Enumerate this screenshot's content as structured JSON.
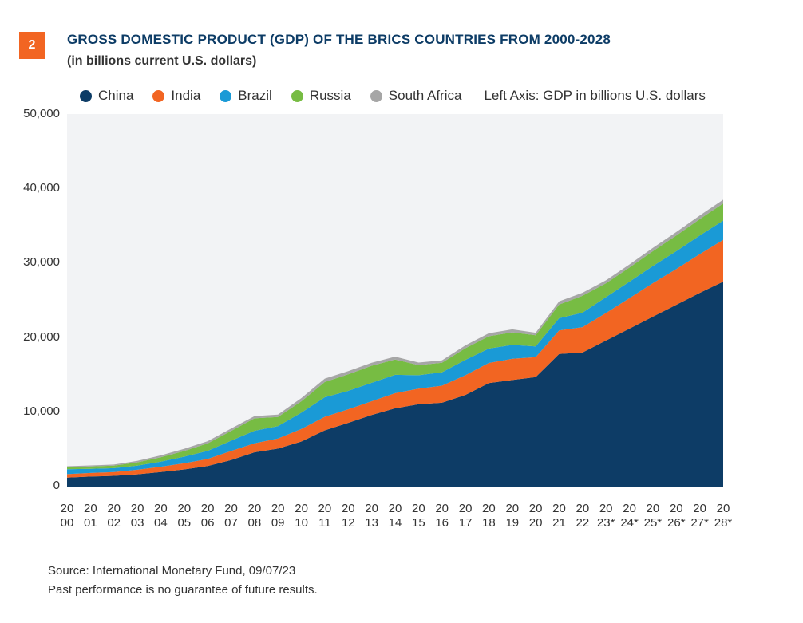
{
  "figure": {
    "number": "2",
    "title": "GROSS DOMESTIC PRODUCT (GDP) OF THE BRICS COUNTRIES FROM 2000-2028",
    "subtitle": "(in billions current U.S. dollars)"
  },
  "legend": {
    "items": [
      {
        "label": "China",
        "color": "#0d3c66"
      },
      {
        "label": "India",
        "color": "#f26522"
      },
      {
        "label": "Brazil",
        "color": "#1a9ad6"
      },
      {
        "label": "Russia",
        "color": "#77bc43"
      },
      {
        "label": "South Africa",
        "color": "#a6a6a6"
      }
    ],
    "note": "Left Axis: GDP in billions U.S. dollars"
  },
  "footer": {
    "source": "Source: International Monetary Fund,  09/07/23",
    "disclaimer": "Past performance is no guarantee of future results."
  },
  "chart_data": {
    "type": "area",
    "stacked": true,
    "ylim": [
      0,
      50000
    ],
    "yticks": [
      "50,000",
      "40,000",
      "30,000",
      "20,000",
      "10,000",
      "0"
    ],
    "grid": false,
    "background": "#f2f3f5",
    "legend_position": "top",
    "x_labels": [
      [
        "20",
        "00"
      ],
      [
        "20",
        "01"
      ],
      [
        "20",
        "02"
      ],
      [
        "20",
        "03"
      ],
      [
        "20",
        "04"
      ],
      [
        "20",
        "05"
      ],
      [
        "20",
        "06"
      ],
      [
        "20",
        "07"
      ],
      [
        "20",
        "08"
      ],
      [
        "20",
        "09"
      ],
      [
        "20",
        "10"
      ],
      [
        "20",
        "11"
      ],
      [
        "20",
        "12"
      ],
      [
        "20",
        "13"
      ],
      [
        "20",
        "14"
      ],
      [
        "20",
        "15"
      ],
      [
        "20",
        "16"
      ],
      [
        "20",
        "17"
      ],
      [
        "20",
        "18"
      ],
      [
        "20",
        "19"
      ],
      [
        "20",
        "20"
      ],
      [
        "20",
        "21"
      ],
      [
        "20",
        "22"
      ],
      [
        "20",
        "23*"
      ],
      [
        "20",
        "24*"
      ],
      [
        "20",
        "25*"
      ],
      [
        "20",
        "26*"
      ],
      [
        "20",
        "27*"
      ],
      [
        "20",
        "28*"
      ]
    ],
    "series": [
      {
        "name": "China",
        "color": "#0d3c66",
        "values": [
          1200,
          1350,
          1450,
          1650,
          1950,
          2300,
          2750,
          3550,
          4600,
          5100,
          6050,
          7550,
          8550,
          9600,
          10500,
          11050,
          11250,
          12300,
          13900,
          14300,
          14700,
          17800,
          18000,
          19600,
          21200,
          22800,
          24400,
          26000,
          27500
        ]
      },
      {
        "name": "India",
        "color": "#f26522",
        "values": [
          470,
          480,
          510,
          610,
          720,
          830,
          950,
          1220,
          1200,
          1350,
          1680,
          1820,
          1830,
          1860,
          2040,
          2100,
          2290,
          2650,
          2700,
          2850,
          2670,
          3150,
          3400,
          3700,
          4100,
          4500,
          4800,
          5200,
          5600
        ]
      },
      {
        "name": "Brazil",
        "color": "#1a9ad6",
        "values": [
          650,
          560,
          510,
          560,
          670,
          890,
          1100,
          1390,
          1700,
          1670,
          2210,
          2620,
          2470,
          2470,
          2460,
          1800,
          1800,
          2060,
          1920,
          1870,
          1450,
          1650,
          1950,
          2130,
          2200,
          2300,
          2400,
          2500,
          2600
        ]
      },
      {
        "name": "Russia",
        "color": "#77bc43",
        "values": [
          260,
          310,
          350,
          430,
          590,
          760,
          990,
          1300,
          1660,
          1220,
          1520,
          2050,
          2210,
          2290,
          2060,
          1360,
          1280,
          1570,
          1660,
          1690,
          1490,
          1840,
          2270,
          1860,
          1900,
          2000,
          2100,
          2200,
          2300
        ]
      },
      {
        "name": "South Africa",
        "color": "#a6a6a6",
        "values": [
          150,
          135,
          130,
          200,
          260,
          290,
          300,
          330,
          300,
          330,
          420,
          460,
          440,
          400,
          380,
          340,
          330,
          380,
          400,
          390,
          340,
          420,
          400,
          400,
          420,
          440,
          460,
          480,
          500
        ]
      }
    ]
  }
}
